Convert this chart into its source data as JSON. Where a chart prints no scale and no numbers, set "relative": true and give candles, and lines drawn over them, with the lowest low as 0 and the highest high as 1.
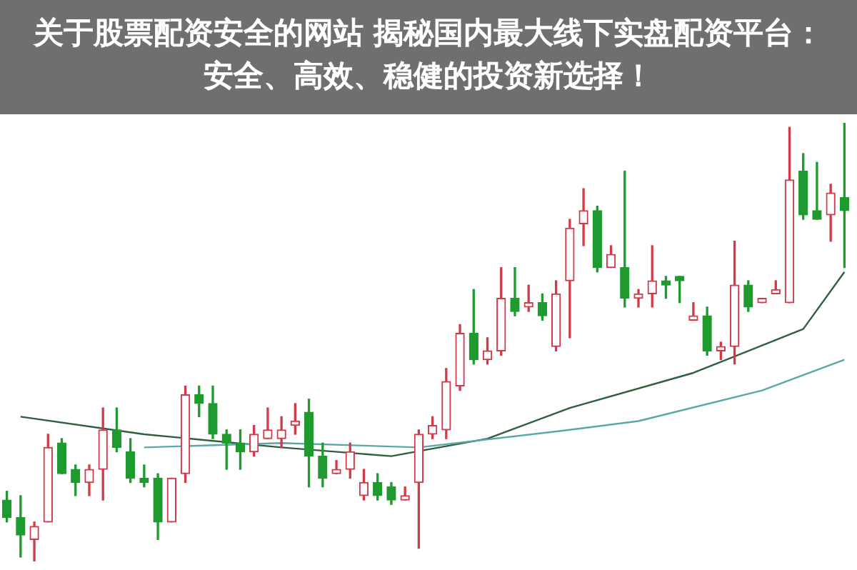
{
  "chart_data": {
    "type": "candlestick",
    "title": "关于股票配资安全的网站 揭秘国内最大线下实盘配资平台：安全、高效、稳健的投资新选择！",
    "relative": true,
    "categories": [
      null,
      null,
      null,
      null,
      null,
      null,
      null,
      null,
      null,
      null,
      null,
      null,
      null,
      null,
      null,
      null,
      null,
      null,
      null,
      null,
      null,
      null,
      null,
      null,
      null,
      null,
      null,
      null,
      null,
      null,
      null,
      null,
      null,
      null,
      null,
      null,
      null,
      null,
      null,
      null,
      null,
      null,
      null,
      null,
      null,
      null,
      null,
      null,
      null,
      null,
      null,
      null,
      null,
      null,
      null,
      null,
      null,
      null,
      null,
      null,
      null,
      null
    ],
    "ohlc": [
      [
        0.14,
        0.16,
        0.09,
        0.1
      ],
      [
        0.1,
        0.15,
        0.01,
        0.06
      ],
      [
        0.05,
        0.09,
        0,
        0.08
      ],
      [
        0.09,
        0.29,
        0.09,
        0.26
      ],
      [
        0.27,
        0.28,
        0.2,
        0.2
      ],
      [
        0.21,
        0.22,
        0.15,
        0.18
      ],
      [
        0.18,
        0.22,
        0.15,
        0.21
      ],
      [
        0.21,
        0.35,
        0.14,
        0.3
      ],
      [
        0.3,
        0.35,
        0.25,
        0.26
      ],
      [
        0.25,
        0.28,
        0.18,
        0.19
      ],
      [
        0.19,
        0.22,
        0.17,
        0.18
      ],
      [
        0.19,
        0.2,
        0.05,
        0.09
      ],
      [
        0.09,
        0.19,
        0.09,
        0.19
      ],
      [
        0.2,
        0.4,
        0.18,
        0.38
      ],
      [
        0.38,
        0.4,
        0.33,
        0.36
      ],
      [
        0.36,
        0.4,
        0.28,
        0.29
      ],
      [
        0.29,
        0.3,
        0.21,
        0.27
      ],
      [
        0.27,
        0.3,
        0.21,
        0.25
      ],
      [
        0.25,
        0.31,
        0.24,
        0.29
      ],
      [
        0.28,
        0.35,
        0.28,
        0.3
      ],
      [
        0.28,
        0.33,
        0.26,
        0.3
      ],
      [
        0.31,
        0.36,
        0.29,
        0.32
      ],
      [
        0.34,
        0.37,
        0.17,
        0.24
      ],
      [
        0.24,
        0.27,
        0.17,
        0.19
      ],
      [
        0.2,
        0.23,
        0.2,
        0.21
      ],
      [
        0.21,
        0.27,
        0.19,
        0.25
      ],
      [
        0.15,
        0.21,
        0.14,
        0.18
      ],
      [
        0.18,
        0.2,
        0.14,
        0.15
      ],
      [
        0.17,
        0.18,
        0.13,
        0.14
      ],
      [
        0.14,
        0.17,
        0.14,
        0.15
      ],
      [
        0.18,
        0.3,
        0.03,
        0.29
      ],
      [
        0.29,
        0.33,
        0.28,
        0.31
      ],
      [
        0.3,
        0.44,
        0.28,
        0.41
      ],
      [
        0.4,
        0.54,
        0.39,
        0.52
      ],
      [
        0.52,
        0.62,
        0.45,
        0.46
      ],
      [
        0.46,
        0.51,
        0.45,
        0.48
      ],
      [
        0.48,
        0.67,
        0.47,
        0.6
      ],
      [
        0.6,
        0.67,
        0.56,
        0.57
      ],
      [
        0.58,
        0.63,
        0.57,
        0.59
      ],
      [
        0.59,
        0.61,
        0.55,
        0.56
      ],
      [
        0.49,
        0.64,
        0.48,
        0.61
      ],
      [
        0.64,
        0.78,
        0.51,
        0.76
      ],
      [
        0.77,
        0.85,
        0.72,
        0.8
      ],
      [
        0.8,
        0.81,
        0.66,
        0.67
      ],
      [
        0.67,
        0.72,
        0.67,
        0.7
      ],
      [
        0.67,
        0.89,
        0.58,
        0.6
      ],
      [
        0.6,
        0.62,
        0.58,
        0.61
      ],
      [
        0.61,
        0.72,
        0.58,
        0.64
      ],
      [
        0.64,
        0.65,
        0.6,
        0.63
      ],
      [
        0.65,
        0.65,
        0.59,
        0.64
      ],
      [
        0.55,
        0.59,
        0.55,
        0.56
      ],
      [
        0.56,
        0.58,
        0.47,
        0.48
      ],
      [
        0.48,
        0.5,
        0.46,
        0.49
      ],
      [
        0.49,
        0.73,
        0.45,
        0.63
      ],
      [
        0.63,
        0.64,
        0.57,
        0.58
      ],
      [
        0.59,
        0.6,
        0.59,
        0.6
      ],
      [
        0.61,
        0.64,
        0.61,
        0.62
      ],
      [
        0.59,
        0.99,
        0.59,
        0.87
      ],
      [
        0.89,
        0.93,
        0.78,
        0.79
      ],
      [
        0.8,
        0.91,
        0.78,
        0.78
      ],
      [
        0.79,
        0.86,
        0.73,
        0.84
      ],
      [
        0.83,
        1.0,
        0.67,
        0.8
      ]
    ],
    "colors": [
      "#1e9a2e",
      "#1e9a2e",
      "#d23a4a",
      "#d23a4a",
      "#1e9a2e",
      "#1e9a2e",
      "#d23a4a",
      "#d23a4a",
      "#1e9a2e",
      "#1e9a2e",
      "#1e9a2e",
      "#1e9a2e",
      "#d23a4a",
      "#d23a4a",
      "#1e9a2e",
      "#1e9a2e",
      "#1e9a2e",
      "#1e9a2e",
      "#d23a4a",
      "#d23a4a",
      "#d23a4a",
      "#d23a4a",
      "#1e9a2e",
      "#1e9a2e",
      "#d23a4a",
      "#d23a4a",
      "#d23a4a",
      "#1e9a2e",
      "#1e9a2e",
      "#d23a4a",
      "#d23a4a",
      "#d23a4a",
      "#d23a4a",
      "#d23a4a",
      "#1e9a2e",
      "#d23a4a",
      "#d23a4a",
      "#1e9a2e",
      "#d23a4a",
      "#1e9a2e",
      "#d23a4a",
      "#d23a4a",
      "#d23a4a",
      "#1e9a2e",
      "#d23a4a",
      "#1e9a2e",
      "#d23a4a",
      "#d23a4a",
      "#1e9a2e",
      "#1e9a2e",
      "#d23a4a",
      "#1e9a2e",
      "#d23a4a",
      "#d23a4a",
      "#1e9a2e",
      "#d23a4a",
      "#d23a4a",
      "#d23a4a",
      "#1e9a2e",
      "#1e9a2e",
      "#d23a4a",
      "#1e9a2e"
    ],
    "series": [
      {
        "type": "line",
        "color": "#5aa7a7",
        "values": [
          null,
          null,
          null,
          null,
          null,
          null,
          null,
          null,
          null,
          null,
          0.26,
          null,
          null,
          null,
          null,
          null,
          null,
          null,
          null,
          null,
          0.27,
          null,
          null,
          null,
          null,
          null,
          null,
          null,
          null,
          null,
          0.26,
          null,
          null,
          null,
          null,
          null,
          null,
          null,
          null,
          null,
          null,
          0.3,
          null,
          null,
          null,
          null,
          0.32,
          null,
          null,
          null,
          null,
          null,
          null,
          null,
          null,
          0.39,
          null,
          null,
          null,
          null,
          null,
          0.46
        ]
      },
      {
        "type": "line",
        "color": "#2e5e3e",
        "values": [
          null,
          0.33,
          null,
          null,
          null,
          null,
          null,
          null,
          null,
          null,
          0.29,
          null,
          null,
          null,
          null,
          null,
          null,
          null,
          null,
          null,
          0.26,
          null,
          null,
          null,
          null,
          null,
          null,
          null,
          0.24,
          null,
          null,
          null,
          null,
          null,
          null,
          0.28,
          null,
          null,
          null,
          null,
          null,
          0.35,
          null,
          null,
          null,
          null,
          null,
          null,
          null,
          null,
          0.43,
          null,
          null,
          null,
          null,
          null,
          null,
          null,
          0.53,
          null,
          null,
          0.66
        ]
      }
    ]
  }
}
